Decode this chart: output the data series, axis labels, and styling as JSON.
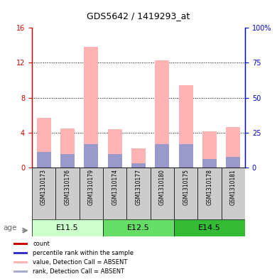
{
  "title": "GDS5642 / 1419293_at",
  "samples": [
    "GSM1310173",
    "GSM1310176",
    "GSM1310179",
    "GSM1310174",
    "GSM1310177",
    "GSM1310180",
    "GSM1310175",
    "GSM1310178",
    "GSM1310181"
  ],
  "pink_bar_values": [
    5.7,
    4.5,
    13.8,
    4.4,
    2.2,
    12.3,
    9.4,
    4.1,
    4.6
  ],
  "blue_bar_values": [
    1.8,
    1.5,
    2.7,
    1.5,
    0.5,
    2.7,
    2.7,
    1.0,
    1.2
  ],
  "ylim_left": [
    0,
    16
  ],
  "ylim_right": [
    0,
    100
  ],
  "yticks_left": [
    0,
    4,
    8,
    12,
    16
  ],
  "yticks_right": [
    0,
    25,
    50,
    75,
    100
  ],
  "yticklabels_right": [
    "0",
    "25",
    "50",
    "75",
    "100%"
  ],
  "bar_width": 0.6,
  "pink_color": "#ffb3b3",
  "blue_color": "#9999cc",
  "left_axis_color": "#cc0000",
  "right_axis_color": "#0000cc",
  "grid_lines": [
    4,
    8,
    12
  ],
  "group_info": [
    {
      "label": "E11.5",
      "start": 0,
      "end": 2,
      "color": "#ccffcc"
    },
    {
      "label": "E12.5",
      "start": 3,
      "end": 5,
      "color": "#66dd66"
    },
    {
      "label": "E14.5",
      "start": 6,
      "end": 8,
      "color": "#33bb33"
    }
  ],
  "legend_items": [
    {
      "color": "#cc0000",
      "label": "count"
    },
    {
      "color": "#3333cc",
      "label": "percentile rank within the sample"
    },
    {
      "color": "#ffb3b3",
      "label": "value, Detection Call = ABSENT"
    },
    {
      "color": "#aaaacc",
      "label": "rank, Detection Call = ABSENT"
    }
  ],
  "age_label": "age",
  "sample_bg_color": "#cccccc",
  "title_fontsize": 9,
  "tick_fontsize": 7,
  "label_fontsize": 6.5
}
